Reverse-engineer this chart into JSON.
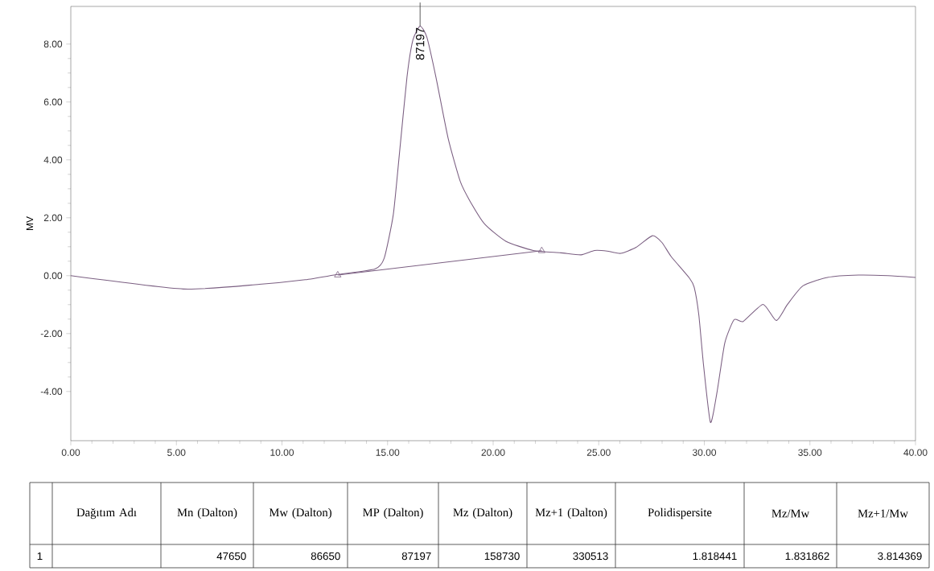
{
  "chart_data": {
    "type": "line",
    "ylabel": "MV",
    "xlim": [
      0,
      40
    ],
    "ylim": [
      -5.7,
      9.3
    ],
    "xticks": [
      {
        "value": 0,
        "label": "0.00"
      },
      {
        "value": 5,
        "label": "5.00"
      },
      {
        "value": 10,
        "label": "10.00"
      },
      {
        "value": 15,
        "label": "15.00"
      },
      {
        "value": 20,
        "label": "20.00"
      },
      {
        "value": 25,
        "label": "25.00"
      },
      {
        "value": 30,
        "label": "30.00"
      },
      {
        "value": 35,
        "label": "35.00"
      },
      {
        "value": 40,
        "label": "40.00"
      }
    ],
    "yticks": [
      {
        "value": -4,
        "label": "-4.00"
      },
      {
        "value": -2,
        "label": "-2.00"
      },
      {
        "value": 0,
        "label": "0.00"
      },
      {
        "value": 2,
        "label": "2.00"
      },
      {
        "value": 4,
        "label": "4.00"
      },
      {
        "value": 6,
        "label": "6.00"
      },
      {
        "value": 8,
        "label": "8.00"
      }
    ],
    "grid": false,
    "series": [
      {
        "color": "#7b5f82",
        "marker": "none",
        "x": [
          0,
          5.33,
          8.93,
          11.1,
          12.64,
          14.4,
          14.84,
          15.27,
          15.56,
          15.92,
          16.2,
          16.54,
          16.86,
          17.29,
          17.87,
          18.44,
          18.9,
          19.6,
          20.6,
          21.9,
          23.2,
          24.16,
          24.8,
          25.4,
          26.04,
          26.77,
          27.54,
          28.0,
          28.43,
          29.3,
          29.52,
          29.74,
          29.96,
          30.29,
          30.6,
          30.97,
          31.41,
          31.84,
          32.78,
          33.41,
          33.94,
          34.67,
          35.83,
          37.3,
          38.7,
          40
        ],
        "values": [
          0,
          -0.46,
          -0.3,
          -0.14,
          0.04,
          0.23,
          0.6,
          2.1,
          4.2,
          6.86,
          8.14,
          8.62,
          8.24,
          6.86,
          4.74,
          3.26,
          2.58,
          1.78,
          1.19,
          0.87,
          0.79,
          0.72,
          0.87,
          0.85,
          0.77,
          0.98,
          1.38,
          1.14,
          0.66,
          -0.09,
          -0.4,
          -1.36,
          -3.07,
          -5.07,
          -4.03,
          -2.32,
          -1.52,
          -1.58,
          -0.99,
          -1.55,
          -0.99,
          -0.35,
          -0.06,
          0.02,
          0,
          -0.06
        ]
      },
      {
        "color": "#7b5f82",
        "marker": "triangle",
        "x": [
          12.64,
          22.3
        ],
        "values": [
          0.02,
          0.86
        ]
      }
    ],
    "annotations": [
      {
        "text": "87197",
        "x": 16.54,
        "y": 8.62
      },
      "Dağıtım Adı",
      "Mn (Dalton)",
      "Mw (Dalton)",
      "MP (Dalton)",
      "Mz (Dalton)",
      "Mz+1 (Dalton)",
      "Polidispersite",
      "Mz/Mw",
      "Mz+1/Mw",
      "1",
      "47650",
      "86650",
      "87197",
      "158730",
      "330513",
      "1.818441",
      "1.831862",
      "3.814369"
    ]
  }
}
